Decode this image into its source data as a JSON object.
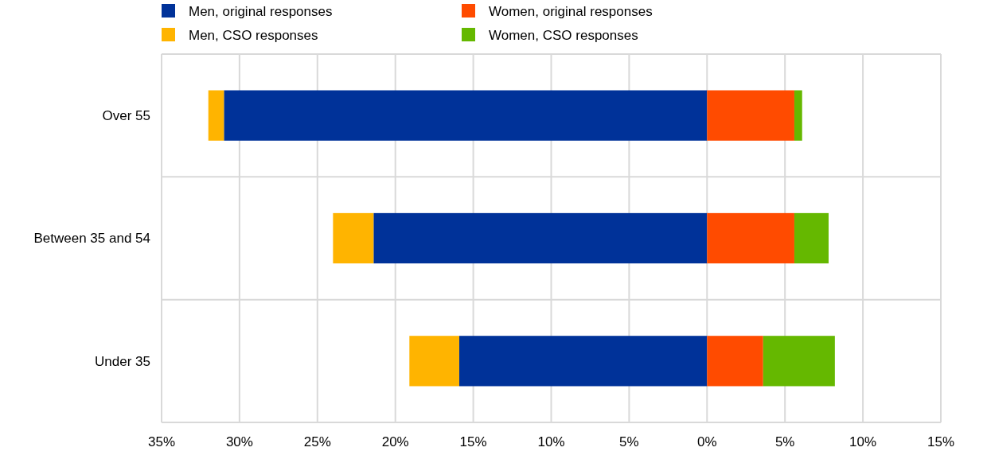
{
  "chart_data": {
    "type": "bar",
    "orientation": "horizontal",
    "stacked": true,
    "categories": [
      "Over 55",
      "Between 35 and 54",
      "Under 35"
    ],
    "series": [
      {
        "name": "Men, original responses",
        "color": "#003299",
        "values": [
          -31.0,
          -21.4,
          -15.9
        ]
      },
      {
        "name": "Women, original responses",
        "color": "#ff4b00",
        "values": [
          5.6,
          5.6,
          3.6
        ]
      },
      {
        "name": "Men, CSO responses",
        "color": "#ffb400",
        "values": [
          -1.0,
          -2.6,
          -3.2
        ]
      },
      {
        "name": "Women, CSO responses",
        "color": "#65b800",
        "values": [
          0.5,
          2.2,
          4.6
        ]
      }
    ],
    "xlim": [
      -35,
      15
    ],
    "xticks": [
      {
        "value": -35,
        "label": "35%"
      },
      {
        "value": -30,
        "label": "30%"
      },
      {
        "value": -25,
        "label": "25%"
      },
      {
        "value": -20,
        "label": "20%"
      },
      {
        "value": -15,
        "label": "15%"
      },
      {
        "value": -10,
        "label": "10%"
      },
      {
        "value": -5,
        "label": "5%"
      },
      {
        "value": 0,
        "label": "0%"
      },
      {
        "value": 5,
        "label": "5%"
      },
      {
        "value": 10,
        "label": "10%"
      },
      {
        "value": 15,
        "label": "15%"
      }
    ],
    "grid": true,
    "legend": "top"
  }
}
